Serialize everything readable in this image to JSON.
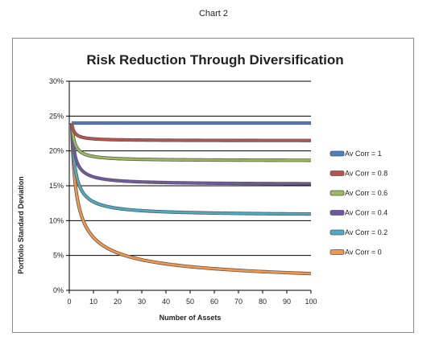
{
  "page": {
    "label": "Chart 2"
  },
  "chart_data": {
    "type": "line",
    "title": "Risk Reduction Through Diversification",
    "xlabel": "Number of Assets",
    "ylabel": "Portfolio Standard Deviation",
    "xlim": [
      0,
      100
    ],
    "ylim": [
      0,
      0.3
    ],
    "x_ticks": [
      0,
      10,
      20,
      30,
      40,
      50,
      60,
      70,
      80,
      90,
      100
    ],
    "y_ticks": [
      0,
      0.05,
      0.1,
      0.15,
      0.2,
      0.25,
      0.3
    ],
    "x_tick_labels": [
      "0",
      "10",
      "20",
      "30",
      "40",
      "50",
      "60",
      "70",
      "80",
      "90",
      "100"
    ],
    "y_tick_labels": [
      "0%",
      "5%",
      "10%",
      "15%",
      "20%",
      "25%",
      "30%"
    ],
    "grid": "horizontal",
    "legend_position": "right",
    "asset_sigma": 0.24,
    "series": [
      {
        "name": "Av Corr = 1",
        "correlation": 1.0,
        "color": "#4a7ec9"
      },
      {
        "name": "Av Corr = 0.8",
        "correlation": 0.8,
        "color": "#c0504d"
      },
      {
        "name": "Av Corr = 0.6",
        "correlation": 0.6,
        "color": "#9bbb59"
      },
      {
        "name": "Av Corr = 0.4",
        "correlation": 0.4,
        "color": "#7057a3"
      },
      {
        "name": "Av Corr = 0.2",
        "correlation": 0.2,
        "color": "#4bacc6"
      },
      {
        "name": "Av Corr = 0",
        "correlation": 0.0,
        "color": "#f79646"
      }
    ]
  }
}
